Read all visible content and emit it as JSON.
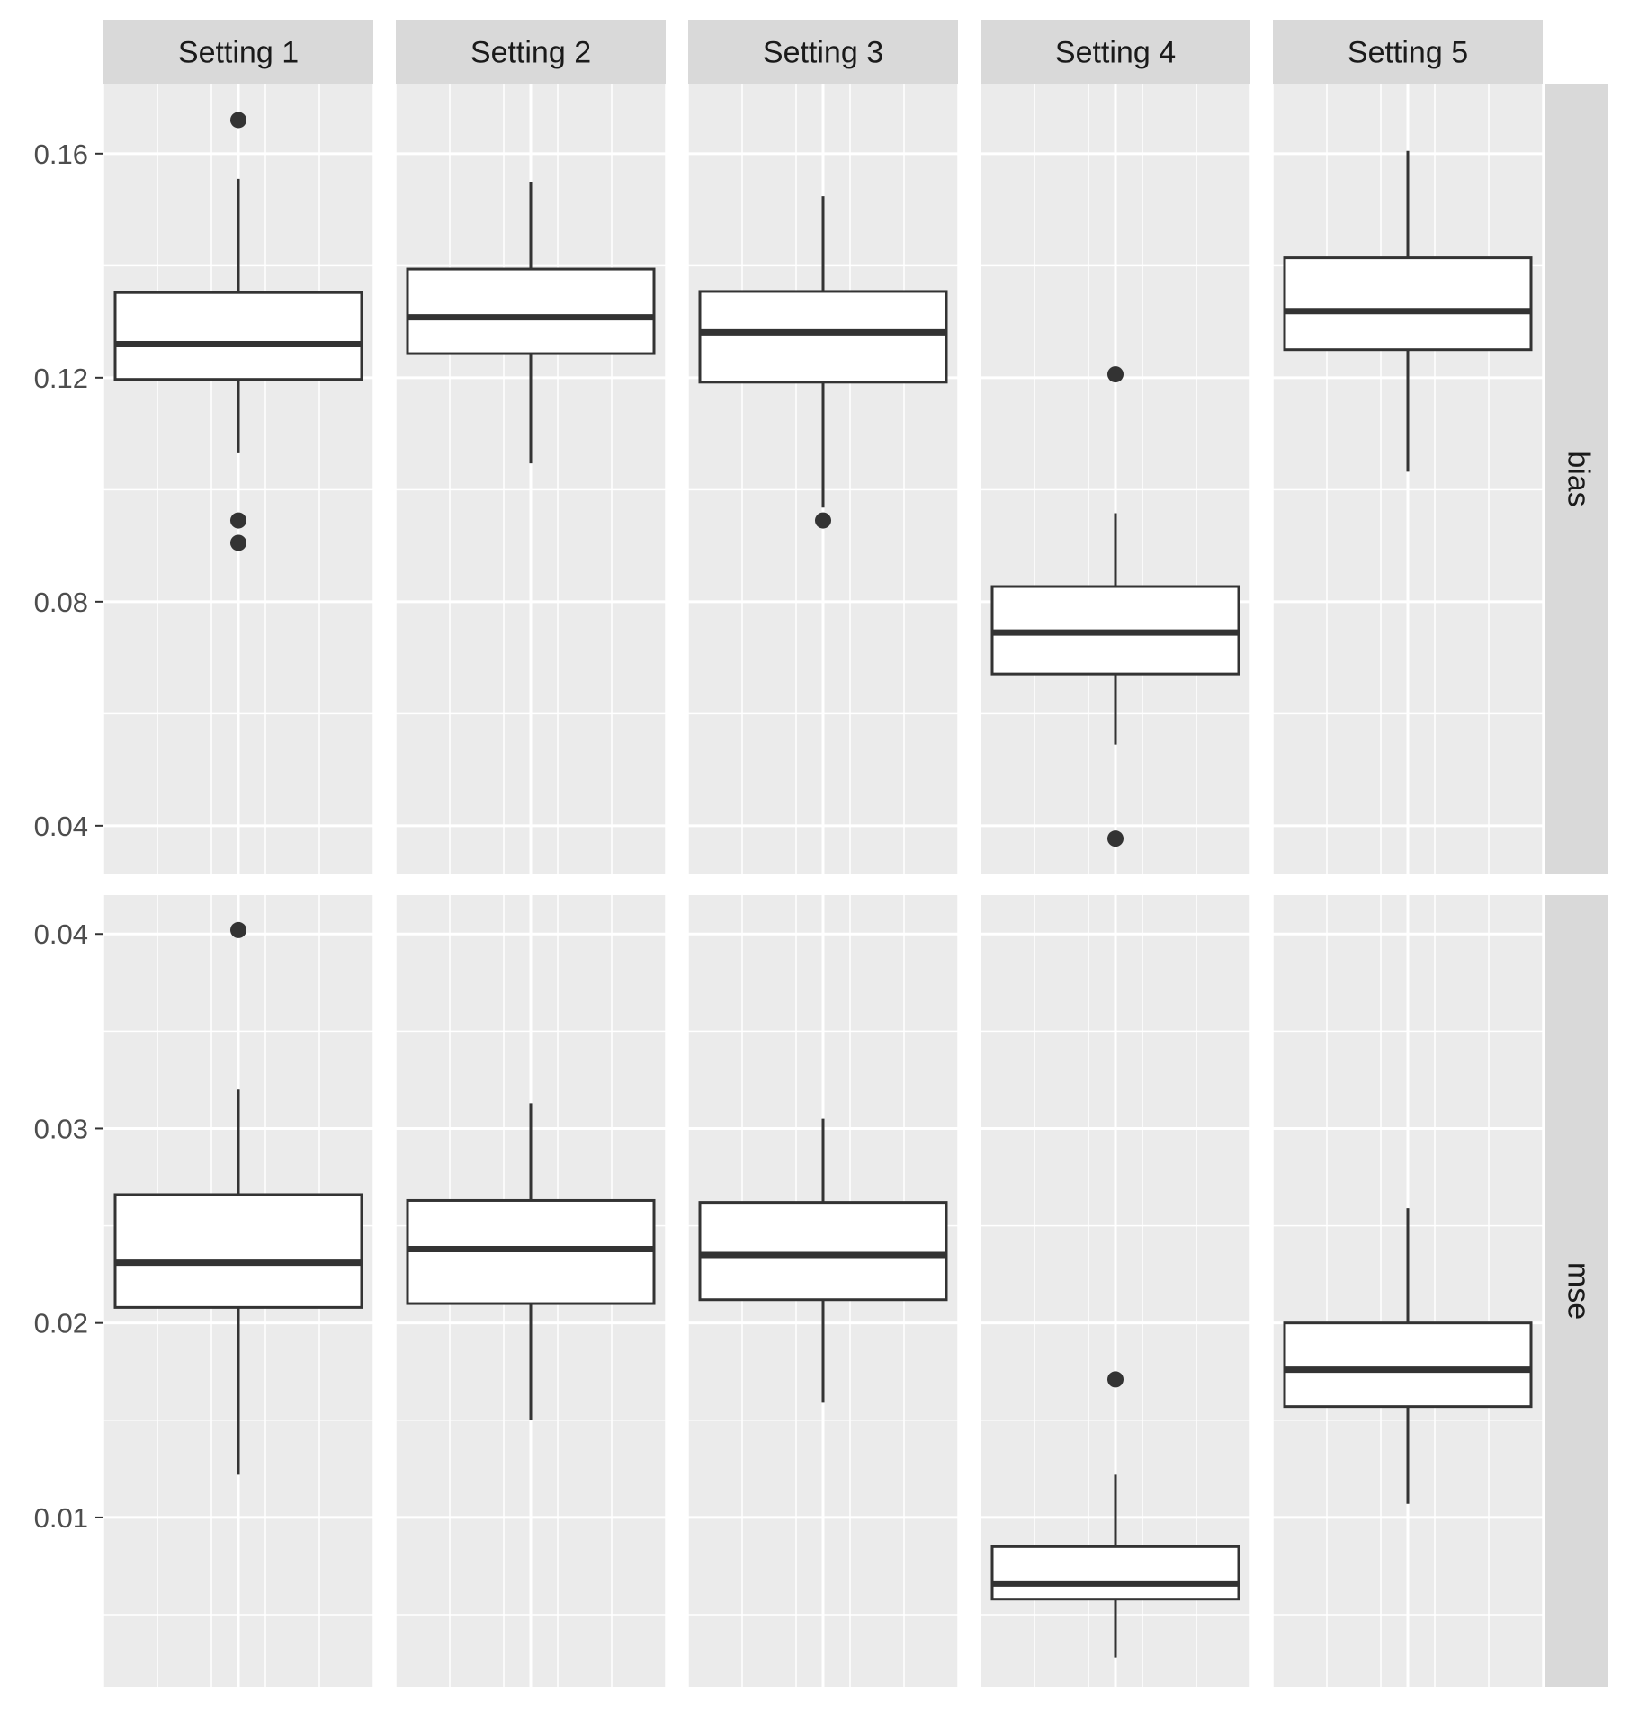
{
  "chart_data": {
    "type": "boxplot",
    "facet_columns": [
      "Setting 1",
      "Setting 2",
      "Setting 3",
      "Setting 4",
      "Setting 5"
    ],
    "facet_rows": [
      "bias",
      "mse"
    ],
    "grid": true,
    "panels": [
      {
        "row": "bias",
        "y_ticks": [
          "0.04",
          "0.08",
          "0.12",
          "0.16"
        ],
        "ylim": [
          0.0313,
          0.1725
        ],
        "boxes": [
          {
            "setting": "Setting 1",
            "lower_whisker": 0.1065,
            "q1": 0.1197,
            "median": 0.126,
            "q3": 0.1352,
            "upper_whisker": 0.1555,
            "outliers": [
              0.166,
              0.0945,
              0.0905
            ]
          },
          {
            "setting": "Setting 2",
            "lower_whisker": 0.1047,
            "q1": 0.1243,
            "median": 0.1308,
            "q3": 0.1394,
            "upper_whisker": 0.155,
            "outliers": []
          },
          {
            "setting": "Setting 3",
            "lower_whisker": 0.0968,
            "q1": 0.1192,
            "median": 0.1281,
            "q3": 0.1354,
            "upper_whisker": 0.1524,
            "outliers": [
              0.0945
            ]
          },
          {
            "setting": "Setting 4",
            "lower_whisker": 0.0545,
            "q1": 0.0671,
            "median": 0.0745,
            "q3": 0.0827,
            "upper_whisker": 0.0958,
            "outliers": [
              0.1206,
              0.0377
            ]
          },
          {
            "setting": "Setting 5",
            "lower_whisker": 0.1032,
            "q1": 0.125,
            "median": 0.1319,
            "q3": 0.1414,
            "upper_whisker": 0.1605,
            "outliers": []
          }
        ]
      },
      {
        "row": "mse",
        "y_ticks": [
          "0.01",
          "0.02",
          "0.03",
          "0.04"
        ],
        "ylim": [
          0.0013,
          0.042
        ],
        "boxes": [
          {
            "setting": "Setting 1",
            "lower_whisker": 0.0122,
            "q1": 0.0208,
            "median": 0.0231,
            "q3": 0.0266,
            "upper_whisker": 0.032,
            "outliers": [
              0.0402
            ]
          },
          {
            "setting": "Setting 2",
            "lower_whisker": 0.015,
            "q1": 0.021,
            "median": 0.0238,
            "q3": 0.0263,
            "upper_whisker": 0.0313,
            "outliers": []
          },
          {
            "setting": "Setting 3",
            "lower_whisker": 0.0159,
            "q1": 0.0212,
            "median": 0.0235,
            "q3": 0.0262,
            "upper_whisker": 0.0305,
            "outliers": []
          },
          {
            "setting": "Setting 4",
            "lower_whisker": 0.0028,
            "q1": 0.0058,
            "median": 0.0066,
            "q3": 0.0085,
            "upper_whisker": 0.0122,
            "outliers": [
              0.0171
            ]
          },
          {
            "setting": "Setting 5",
            "lower_whisker": 0.0107,
            "q1": 0.0157,
            "median": 0.0176,
            "q3": 0.02,
            "upper_whisker": 0.0259,
            "outliers": []
          }
        ]
      }
    ]
  },
  "colors": {
    "panel_background": "#ebebeb",
    "grid_line": "#ffffff",
    "strip_background": "#d9d9d9",
    "strip_text": "#1a1a1a",
    "box_fill": "#ffffff",
    "box_line": "#333333",
    "tick_label": "#4d4d4d"
  }
}
